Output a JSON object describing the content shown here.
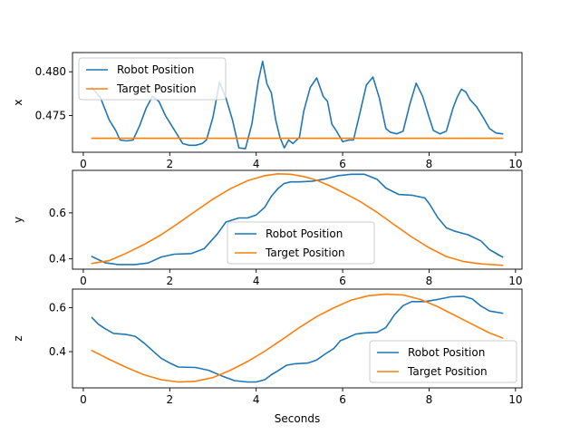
{
  "colors": {
    "robot": "#1f77b4",
    "target": "#ff7f0e",
    "axis": "#000000",
    "legend_border": "#cccccc"
  },
  "chart_data": [
    {
      "type": "line",
      "ylabel": "x",
      "xlabel": "",
      "xlim": [
        -0.25,
        10.15
      ],
      "ylim": [
        0.4708,
        0.4822
      ],
      "xticks": [
        0,
        2,
        4,
        6,
        8,
        10
      ],
      "xtick_labels": [
        "0",
        "2",
        "4",
        "6",
        "8",
        "10"
      ],
      "yticks": [
        0.475,
        0.48
      ],
      "ytick_labels": [
        "0.475",
        "0.480"
      ],
      "legend_position": "top-left",
      "series": [
        {
          "name": "Robot Position",
          "x": [
            0.2,
            0.4,
            0.6,
            0.75,
            0.85,
            1.0,
            1.15,
            1.3,
            1.45,
            1.6,
            1.75,
            1.9,
            2.0,
            2.15,
            2.3,
            2.45,
            2.6,
            2.75,
            2.85,
            3.0,
            3.15,
            3.3,
            3.45,
            3.6,
            3.75,
            3.9,
            4.05,
            4.15,
            4.25,
            4.35,
            4.45,
            4.55,
            4.65,
            4.75,
            4.85,
            5.0,
            5.1,
            5.25,
            5.4,
            5.55,
            5.65,
            5.75,
            5.85,
            6.0,
            6.15,
            6.25,
            6.4,
            6.55,
            6.7,
            6.85,
            7.0,
            7.1,
            7.25,
            7.4,
            7.55,
            7.7,
            7.85,
            8.0,
            8.1,
            8.25,
            8.4,
            8.55,
            8.65,
            8.75,
            8.85,
            8.95,
            9.1,
            9.25,
            9.4,
            9.55,
            9.7
          ],
          "y": [
            0.4782,
            0.477,
            0.4745,
            0.4733,
            0.4722,
            0.4721,
            0.4722,
            0.4738,
            0.4758,
            0.4772,
            0.4766,
            0.475,
            0.4742,
            0.473,
            0.4718,
            0.4716,
            0.4716,
            0.4718,
            0.4722,
            0.4748,
            0.4788,
            0.477,
            0.4745,
            0.4713,
            0.4712,
            0.474,
            0.479,
            0.4812,
            0.4786,
            0.4776,
            0.4745,
            0.4725,
            0.4713,
            0.4722,
            0.4718,
            0.4725,
            0.4755,
            0.4782,
            0.4793,
            0.4772,
            0.4766,
            0.474,
            0.4733,
            0.472,
            0.4722,
            0.4722,
            0.4753,
            0.4785,
            0.4794,
            0.477,
            0.4735,
            0.4731,
            0.4729,
            0.4732,
            0.4762,
            0.4787,
            0.4772,
            0.4748,
            0.4733,
            0.4729,
            0.4732,
            0.4758,
            0.4771,
            0.478,
            0.4777,
            0.4768,
            0.476,
            0.4748,
            0.4735,
            0.473,
            0.4729
          ]
        },
        {
          "name": "Target Position",
          "x": [
            0.2,
            9.7
          ],
          "y": [
            0.4724,
            0.4724
          ]
        }
      ]
    },
    {
      "type": "line",
      "ylabel": "y",
      "xlabel": "",
      "xlim": [
        -0.25,
        10.15
      ],
      "ylim": [
        0.355,
        0.785
      ],
      "xticks": [
        0,
        2,
        4,
        6,
        8,
        10
      ],
      "xtick_labels": [
        "0",
        "2",
        "4",
        "6",
        "8",
        "10"
      ],
      "yticks": [
        0.4,
        0.6
      ],
      "ytick_labels": [
        "0.4",
        "0.6"
      ],
      "legend_position": "bottom-center",
      "series": [
        {
          "name": "Robot Position",
          "x": [
            0.2,
            0.5,
            0.8,
            1.2,
            1.5,
            1.8,
            2.1,
            2.5,
            2.8,
            3.1,
            3.3,
            3.6,
            3.8,
            4.0,
            4.2,
            4.35,
            4.5,
            4.65,
            4.8,
            5.0,
            5.3,
            5.6,
            5.9,
            6.2,
            6.5,
            6.8,
            7.0,
            7.3,
            7.6,
            7.9,
            8.0,
            8.2,
            8.4,
            8.6,
            8.9,
            9.2,
            9.4,
            9.7
          ],
          "y": [
            0.41,
            0.383,
            0.375,
            0.375,
            0.382,
            0.408,
            0.42,
            0.423,
            0.445,
            0.508,
            0.56,
            0.578,
            0.578,
            0.591,
            0.625,
            0.672,
            0.705,
            0.728,
            0.735,
            0.735,
            0.738,
            0.748,
            0.762,
            0.768,
            0.768,
            0.746,
            0.708,
            0.68,
            0.677,
            0.665,
            0.641,
            0.58,
            0.535,
            0.52,
            0.505,
            0.478,
            0.44,
            0.408
          ]
        },
        {
          "name": "Target Position",
          "x": [
            0.2,
            0.6,
            1.0,
            1.4,
            1.8,
            2.2,
            2.6,
            3.0,
            3.4,
            3.8,
            4.2,
            4.5,
            4.8,
            5.1,
            5.4,
            5.7,
            6.0,
            6.4,
            6.8,
            7.2,
            7.6,
            8.0,
            8.4,
            8.8,
            9.2,
            9.7
          ],
          "y": [
            0.38,
            0.392,
            0.425,
            0.462,
            0.505,
            0.555,
            0.608,
            0.66,
            0.705,
            0.74,
            0.762,
            0.77,
            0.768,
            0.758,
            0.742,
            0.718,
            0.69,
            0.65,
            0.602,
            0.548,
            0.495,
            0.448,
            0.41,
            0.388,
            0.378,
            0.372
          ]
        }
      ]
    },
    {
      "type": "line",
      "ylabel": "z",
      "xlabel": "Seconds",
      "xlim": [
        -0.25,
        10.15
      ],
      "ylim": [
        0.235,
        0.685
      ],
      "xticks": [
        0,
        2,
        4,
        6,
        8,
        10
      ],
      "xtick_labels": [
        "0",
        "2",
        "4",
        "6",
        "8",
        "10"
      ],
      "yticks": [
        0.4,
        0.6
      ],
      "ytick_labels": [
        "0.4",
        "0.6"
      ],
      "legend_position": "bottom-right",
      "series": [
        {
          "name": "Robot Position",
          "x": [
            0.2,
            0.35,
            0.5,
            0.7,
            1.0,
            1.2,
            1.4,
            1.6,
            1.8,
            2.0,
            2.2,
            2.6,
            2.9,
            3.2,
            3.5,
            3.8,
            4.0,
            4.2,
            4.35,
            4.5,
            4.7,
            4.9,
            5.2,
            5.4,
            5.6,
            5.8,
            5.95,
            6.1,
            6.3,
            6.5,
            6.8,
            7.0,
            7.2,
            7.4,
            7.6,
            7.9,
            8.2,
            8.5,
            8.8,
            9.0,
            9.2,
            9.4,
            9.7
          ],
          "y": [
            0.555,
            0.525,
            0.505,
            0.483,
            0.478,
            0.47,
            0.44,
            0.405,
            0.37,
            0.348,
            0.33,
            0.328,
            0.315,
            0.29,
            0.268,
            0.262,
            0.262,
            0.272,
            0.295,
            0.312,
            0.338,
            0.345,
            0.348,
            0.362,
            0.39,
            0.415,
            0.45,
            0.462,
            0.48,
            0.485,
            0.488,
            0.51,
            0.568,
            0.61,
            0.628,
            0.628,
            0.638,
            0.65,
            0.652,
            0.64,
            0.608,
            0.585,
            0.575
          ]
        },
        {
          "name": "Target Position",
          "x": [
            0.2,
            0.6,
            1.0,
            1.4,
            1.8,
            2.2,
            2.6,
            3.0,
            3.4,
            3.8,
            4.2,
            4.6,
            5.0,
            5.4,
            5.8,
            6.2,
            6.6,
            7.0,
            7.4,
            7.8,
            8.2,
            8.6,
            9.0,
            9.4,
            9.7
          ],
          "y": [
            0.405,
            0.365,
            0.328,
            0.295,
            0.272,
            0.262,
            0.265,
            0.282,
            0.315,
            0.355,
            0.402,
            0.455,
            0.51,
            0.56,
            0.6,
            0.635,
            0.655,
            0.662,
            0.658,
            0.638,
            0.605,
            0.565,
            0.525,
            0.485,
            0.462
          ]
        }
      ]
    }
  ]
}
